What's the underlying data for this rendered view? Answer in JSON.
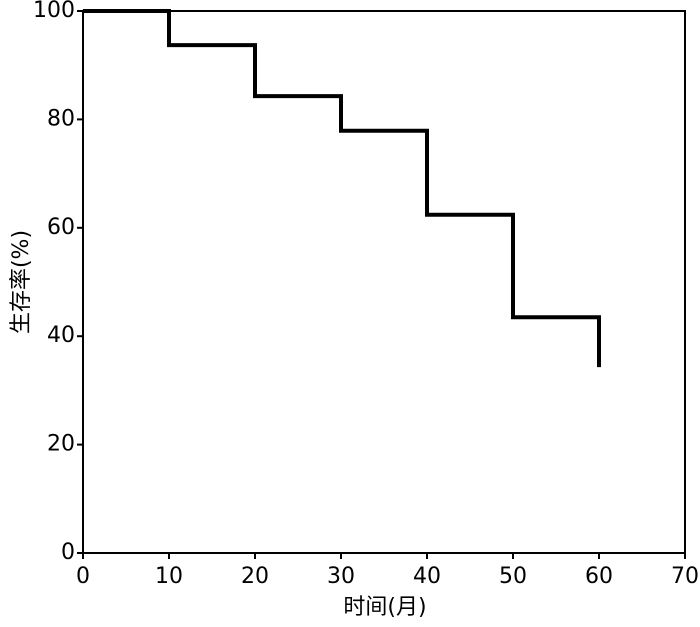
{
  "chart_data": {
    "type": "line",
    "drawstyle": "steps-post",
    "xlabel": "时间(月)",
    "ylabel": "生存率(%)",
    "series": [
      {
        "color": "#000000",
        "x": [
          0,
          10,
          20,
          30,
          40,
          50,
          60
        ],
        "values": [
          100,
          93.7,
          84.3,
          77.9,
          62.4,
          43.5,
          34.3
        ]
      }
    ],
    "xlim": [
      0,
      70
    ],
    "xticks": [
      0,
      10,
      20,
      30,
      40,
      50,
      60,
      70
    ],
    "ylim": [
      0,
      100
    ],
    "yticks": [
      0,
      20,
      40,
      60,
      80,
      100
    ]
  }
}
